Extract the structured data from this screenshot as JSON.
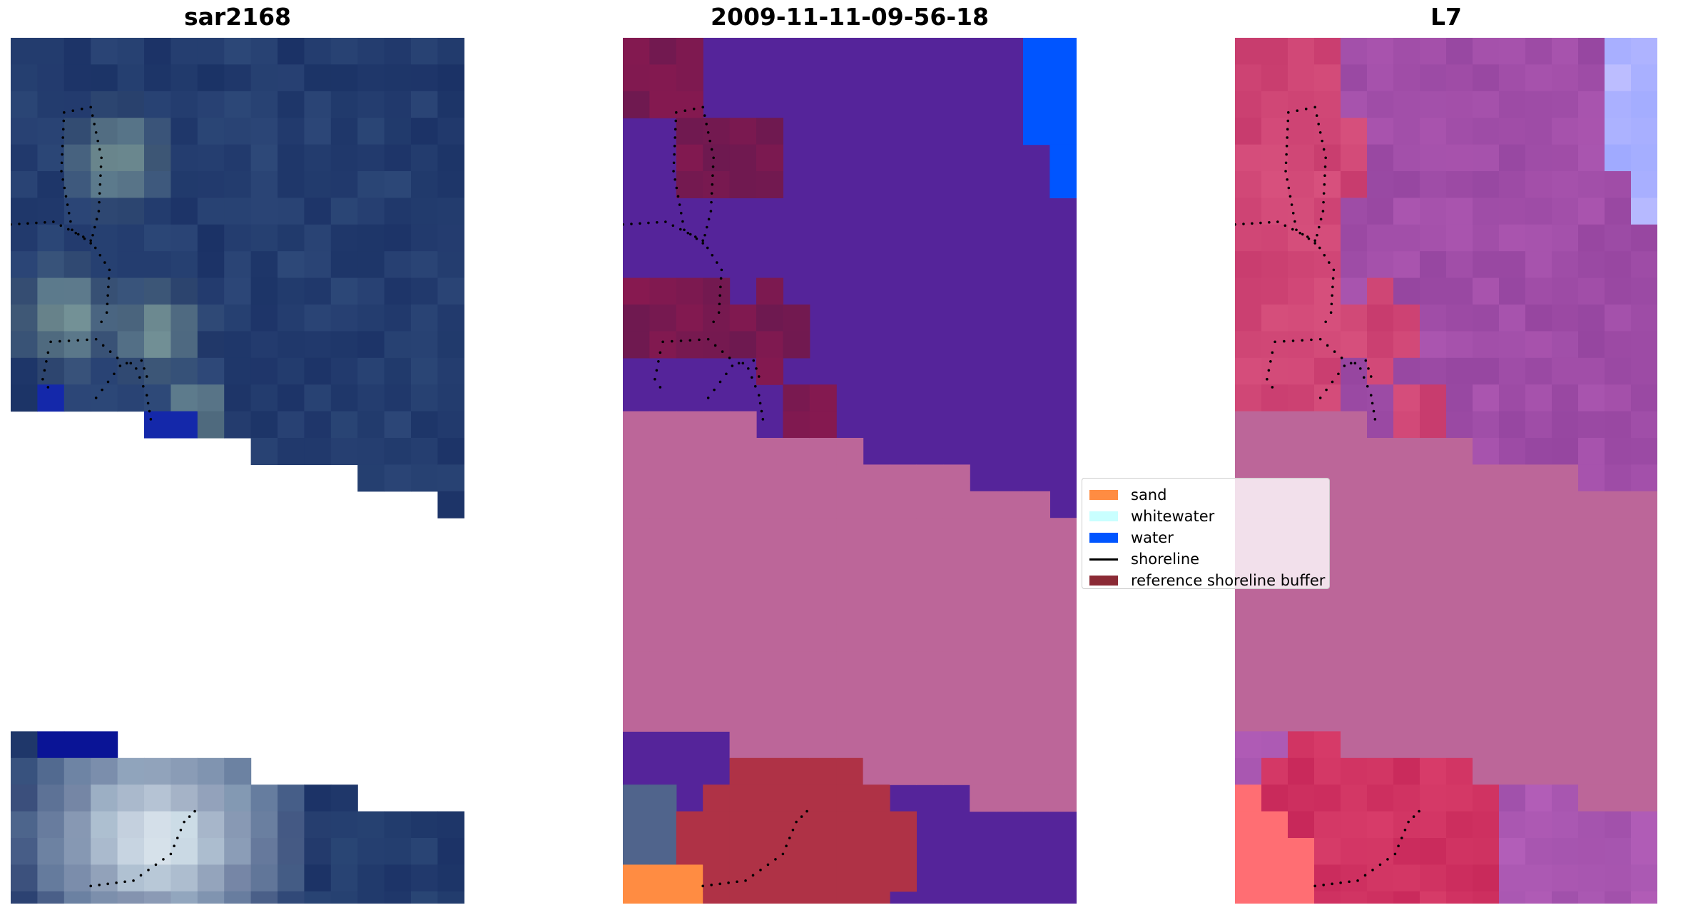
{
  "panels": [
    {
      "id": "rgb",
      "title": "sar2168"
    },
    {
      "id": "classified",
      "title": "2009-11-11-09-56-18"
    },
    {
      "id": "l7",
      "title": "L7"
    }
  ],
  "legend": {
    "items": [
      {
        "label": "sand",
        "color": "#ff8c42",
        "kind": "patch"
      },
      {
        "label": "whitewater",
        "color": "#c9ffff",
        "kind": "patch"
      },
      {
        "label": "water",
        "color": "#0055ff",
        "kind": "patch"
      },
      {
        "label": "shoreline",
        "color": "#000000",
        "kind": "line"
      },
      {
        "label": "reference shoreline buffer",
        "color": "#8b2a35",
        "kind": "patch"
      }
    ]
  },
  "colors": {
    "deep_water": "#1b3266",
    "classified_water": "#55249a",
    "no_data_mask": "#bc6699",
    "l7_water": "#9a4aa8",
    "l7_land": "#c43a6b"
  }
}
